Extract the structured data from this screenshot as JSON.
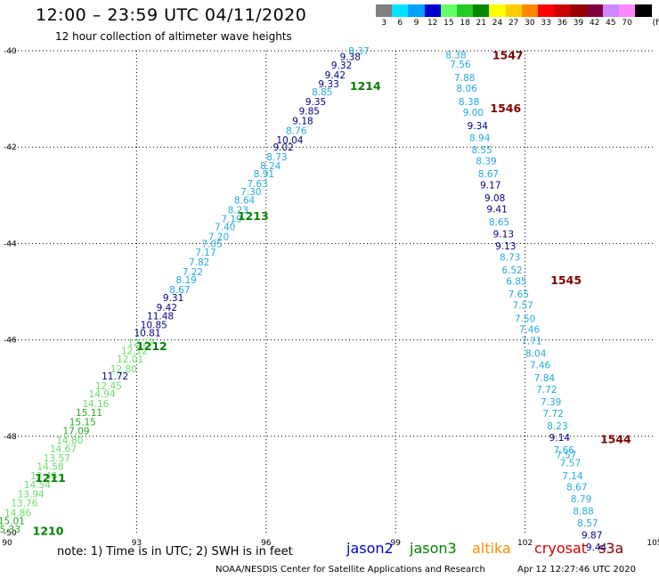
{
  "header": {
    "title": "12:00 – 23:59 UTC 04/11/2020",
    "subtitle": "12 hour collection of altimeter wave heights"
  },
  "legend": {
    "unit": "(ft)",
    "items": [
      {
        "label": "3",
        "color": "#808080"
      },
      {
        "label": "6",
        "color": "#00e5ff"
      },
      {
        "label": "9",
        "color": "#00a0ff"
      },
      {
        "label": "12",
        "color": "#0000cd"
      },
      {
        "label": "15",
        "color": "#66ff66"
      },
      {
        "label": "18",
        "color": "#22cc22"
      },
      {
        "label": "21",
        "color": "#008800"
      },
      {
        "label": "24",
        "color": "#ffff00"
      },
      {
        "label": "27",
        "color": "#ffcc00"
      },
      {
        "label": "30",
        "color": "#ff8800"
      },
      {
        "label": "33",
        "color": "#ff0000"
      },
      {
        "label": "36",
        "color": "#cc0000"
      },
      {
        "label": "39",
        "color": "#990000"
      },
      {
        "label": "42",
        "color": "#800040"
      },
      {
        "label": "45",
        "color": "#cc88ff"
      },
      {
        "label": "70",
        "color": "#ff88ff"
      },
      {
        "label": "",
        "color": "#000000"
      }
    ]
  },
  "axes": {
    "x_ticks": [
      "90",
      "93",
      "96",
      "99",
      "102",
      "105"
    ],
    "y_ticks": [
      "-40",
      "-42",
      "-44",
      "-46",
      "-48",
      "-50"
    ]
  },
  "colors": {
    "jason2": "#00008b",
    "jason3": "#008000",
    "altika": "#ff8c00",
    "cryosat": "#dd0000",
    "s3a": "#800000",
    "light_blue": "#22aadd",
    "dark_blue": "#00008b",
    "light_green": "#66dd66",
    "mid_green": "#22aa22",
    "grid": "#000000"
  },
  "map": {
    "points": [
      {
        "lon": 98.15,
        "lat": -40.0,
        "value": "8.37",
        "color": "#22aadd"
      },
      {
        "lon": 97.95,
        "lat": -40.12,
        "value": "9.38",
        "color": "#00008b"
      },
      {
        "lon": 97.75,
        "lat": -40.3,
        "value": "9.32",
        "color": "#00008b"
      },
      {
        "lon": 97.6,
        "lat": -40.5,
        "value": "9.42",
        "color": "#00008b"
      },
      {
        "lon": 97.45,
        "lat": -40.68,
        "value": "9.33",
        "color": "#00008b"
      },
      {
        "lon": 97.3,
        "lat": -40.85,
        "value": "8.85",
        "color": "#22aadd"
      },
      {
        "lon": 97.15,
        "lat": -41.05,
        "value": "9.35",
        "color": "#00008b"
      },
      {
        "lon": 97.0,
        "lat": -41.25,
        "value": "9.85",
        "color": "#00008b"
      },
      {
        "lon": 96.85,
        "lat": -41.45,
        "value": "9.18",
        "color": "#00008b"
      },
      {
        "lon": 96.7,
        "lat": -41.65,
        "value": "8.76",
        "color": "#22aadd"
      },
      {
        "lon": 96.55,
        "lat": -41.85,
        "value": "10.04",
        "color": "#00008b"
      },
      {
        "lon": 96.4,
        "lat": -42.0,
        "value": "9.02",
        "color": "#00008b"
      },
      {
        "lon": 96.25,
        "lat": -42.2,
        "value": "8.73",
        "color": "#22aadd"
      },
      {
        "lon": 96.1,
        "lat": -42.38,
        "value": "8.24",
        "color": "#22aadd"
      },
      {
        "lon": 95.95,
        "lat": -42.55,
        "value": "8.91",
        "color": "#22aadd"
      },
      {
        "lon": 95.8,
        "lat": -42.75,
        "value": "7.63",
        "color": "#22aadd"
      },
      {
        "lon": 95.65,
        "lat": -42.92,
        "value": "7.30",
        "color": "#22aadd"
      },
      {
        "lon": 95.5,
        "lat": -43.1,
        "value": "8.64",
        "color": "#22aadd"
      },
      {
        "lon": 95.35,
        "lat": -43.3,
        "value": "8.23",
        "color": "#22aadd"
      },
      {
        "lon": 95.2,
        "lat": -43.48,
        "value": "7.19",
        "color": "#22aadd"
      },
      {
        "lon": 95.05,
        "lat": -43.65,
        "value": "7.40",
        "color": "#22aadd"
      },
      {
        "lon": 94.9,
        "lat": -43.85,
        "value": "7.20",
        "color": "#22aadd"
      },
      {
        "lon": 94.75,
        "lat": -44.0,
        "value": "7.05",
        "color": "#22aadd"
      },
      {
        "lon": 94.6,
        "lat": -44.18,
        "value": "7.17",
        "color": "#22aadd"
      },
      {
        "lon": 94.45,
        "lat": -44.38,
        "value": "7.82",
        "color": "#22aadd"
      },
      {
        "lon": 94.3,
        "lat": -44.58,
        "value": "7.22",
        "color": "#22aadd"
      },
      {
        "lon": 94.15,
        "lat": -44.75,
        "value": "8.19",
        "color": "#22aadd"
      },
      {
        "lon": 94.0,
        "lat": -44.95,
        "value": "8.67",
        "color": "#22aadd"
      },
      {
        "lon": 93.85,
        "lat": -45.12,
        "value": "9.31",
        "color": "#00008b"
      },
      {
        "lon": 93.7,
        "lat": -45.32,
        "value": "9.42",
        "color": "#00008b"
      },
      {
        "lon": 93.55,
        "lat": -45.5,
        "value": "11.48",
        "color": "#00008b"
      },
      {
        "lon": 93.4,
        "lat": -45.68,
        "value": "10.85",
        "color": "#00008b"
      },
      {
        "lon": 93.25,
        "lat": -45.85,
        "value": "10.81",
        "color": "#00008b"
      },
      {
        "lon": 93.1,
        "lat": -46.05,
        "value": "12.27",
        "color": "#66dd66"
      },
      {
        "lon": 92.95,
        "lat": -46.22,
        "value": "12.12",
        "color": "#66dd66"
      },
      {
        "lon": 92.85,
        "lat": -46.4,
        "value": "12.01",
        "color": "#66dd66"
      },
      {
        "lon": 92.7,
        "lat": -46.6,
        "value": "12.80",
        "color": "#66dd66"
      },
      {
        "lon": 92.5,
        "lat": -46.75,
        "value": "11.72",
        "color": "#00008b"
      },
      {
        "lon": 92.35,
        "lat": -46.95,
        "value": "12.45",
        "color": "#66dd66"
      },
      {
        "lon": 92.2,
        "lat": -47.12,
        "value": "14.94",
        "color": "#66dd66"
      },
      {
        "lon": 92.05,
        "lat": -47.32,
        "value": "14.16",
        "color": "#66dd66"
      },
      {
        "lon": 91.9,
        "lat": -47.5,
        "value": "15.11",
        "color": "#22aa22"
      },
      {
        "lon": 91.75,
        "lat": -47.7,
        "value": "15.15",
        "color": "#22aa22"
      },
      {
        "lon": 91.6,
        "lat": -47.88,
        "value": "17.09",
        "color": "#22aa22"
      },
      {
        "lon": 91.45,
        "lat": -48.08,
        "value": "14.80",
        "color": "#66dd66"
      },
      {
        "lon": 91.3,
        "lat": -48.25,
        "value": "14.67",
        "color": "#66dd66"
      },
      {
        "lon": 91.15,
        "lat": -48.45,
        "value": "13.57",
        "color": "#66dd66"
      },
      {
        "lon": 91.0,
        "lat": -48.62,
        "value": "14.58",
        "color": "#66dd66"
      },
      {
        "lon": 90.85,
        "lat": -48.82,
        "value": "13.48",
        "color": "#66dd66"
      },
      {
        "lon": 90.7,
        "lat": -49.0,
        "value": "14.54",
        "color": "#66dd66"
      },
      {
        "lon": 90.55,
        "lat": -49.2,
        "value": "13.94",
        "color": "#66dd66"
      },
      {
        "lon": 90.4,
        "lat": -49.38,
        "value": "13.76",
        "color": "#66dd66"
      },
      {
        "lon": 90.25,
        "lat": -49.58,
        "value": "14.86",
        "color": "#66dd66"
      },
      {
        "lon": 90.1,
        "lat": -49.75,
        "value": "15.01",
        "color": "#22aa22"
      },
      {
        "lon": 90.0,
        "lat": -49.93,
        "value": "15.33",
        "color": "#22aa22"
      },
      {
        "lon": 100.4,
        "lat": -40.08,
        "value": "8.38",
        "color": "#22aadd"
      },
      {
        "lon": 100.5,
        "lat": -40.28,
        "value": "7.56",
        "color": "#22aadd"
      },
      {
        "lon": 100.6,
        "lat": -40.55,
        "value": "7.88",
        "color": "#22aadd"
      },
      {
        "lon": 100.65,
        "lat": -40.78,
        "value": "8.06",
        "color": "#22aadd"
      },
      {
        "lon": 100.7,
        "lat": -41.05,
        "value": "8.38",
        "color": "#22aadd"
      },
      {
        "lon": 100.8,
        "lat": -41.28,
        "value": "9.00",
        "color": "#22aadd"
      },
      {
        "lon": 100.9,
        "lat": -41.55,
        "value": "9.34",
        "color": "#00008b"
      },
      {
        "lon": 100.95,
        "lat": -41.8,
        "value": "8.94",
        "color": "#22aadd"
      },
      {
        "lon": 101.0,
        "lat": -42.05,
        "value": "8.55",
        "color": "#22aadd"
      },
      {
        "lon": 101.1,
        "lat": -42.28,
        "value": "8.39",
        "color": "#22aadd"
      },
      {
        "lon": 101.15,
        "lat": -42.55,
        "value": "8.67",
        "color": "#22aadd"
      },
      {
        "lon": 101.2,
        "lat": -42.78,
        "value": "9.17",
        "color": "#00008b"
      },
      {
        "lon": 101.3,
        "lat": -43.05,
        "value": "9.08",
        "color": "#00008b"
      },
      {
        "lon": 101.35,
        "lat": -43.28,
        "value": "9.41",
        "color": "#00008b"
      },
      {
        "lon": 101.4,
        "lat": -43.55,
        "value": "8.65",
        "color": "#22aadd"
      },
      {
        "lon": 101.5,
        "lat": -43.8,
        "value": "9.13",
        "color": "#00008b"
      },
      {
        "lon": 101.55,
        "lat": -44.05,
        "value": "9.13",
        "color": "#00008b"
      },
      {
        "lon": 101.65,
        "lat": -44.28,
        "value": "8.73",
        "color": "#22aadd"
      },
      {
        "lon": 101.7,
        "lat": -44.55,
        "value": "6.52",
        "color": "#22aadd"
      },
      {
        "lon": 101.8,
        "lat": -44.78,
        "value": "6.85",
        "color": "#22aadd"
      },
      {
        "lon": 101.85,
        "lat": -45.05,
        "value": "7.65",
        "color": "#22aadd"
      },
      {
        "lon": 101.95,
        "lat": -45.28,
        "value": "7.57",
        "color": "#22aadd"
      },
      {
        "lon": 102.0,
        "lat": -45.55,
        "value": "7.50",
        "color": "#22aadd"
      },
      {
        "lon": 102.1,
        "lat": -45.78,
        "value": "7.46",
        "color": "#22aadd"
      },
      {
        "lon": 102.15,
        "lat": -46.02,
        "value": "7.71",
        "color": "#22aadd"
      },
      {
        "lon": 102.25,
        "lat": -46.28,
        "value": "8.04",
        "color": "#22aadd"
      },
      {
        "lon": 102.35,
        "lat": -46.52,
        "value": "7.46",
        "color": "#22aadd"
      },
      {
        "lon": 102.45,
        "lat": -46.78,
        "value": "7.84",
        "color": "#22aadd"
      },
      {
        "lon": 102.5,
        "lat": -47.02,
        "value": "7.72",
        "color": "#22aadd"
      },
      {
        "lon": 102.6,
        "lat": -47.28,
        "value": "7.39",
        "color": "#22aadd"
      },
      {
        "lon": 102.65,
        "lat": -47.52,
        "value": "7.72",
        "color": "#22aadd"
      },
      {
        "lon": 102.75,
        "lat": -47.78,
        "value": "8.23",
        "color": "#22aadd"
      },
      {
        "lon": 102.8,
        "lat": -48.02,
        "value": "9.14",
        "color": "#00008b"
      },
      {
        "lon": 102.9,
        "lat": -48.28,
        "value": "7.66",
        "color": "#22aadd"
      },
      {
        "lon": 102.95,
        "lat": -48.38,
        "value": "7.57",
        "color": "#22aadd"
      },
      {
        "lon": 103.05,
        "lat": -48.55,
        "value": "7.57",
        "color": "#22aadd"
      },
      {
        "lon": 103.1,
        "lat": -48.82,
        "value": "7.14",
        "color": "#22aadd"
      },
      {
        "lon": 103.2,
        "lat": -49.05,
        "value": "8.67",
        "color": "#22aadd"
      },
      {
        "lon": 103.3,
        "lat": -49.3,
        "value": "8.79",
        "color": "#22aadd"
      },
      {
        "lon": 103.35,
        "lat": -49.55,
        "value": "8.88",
        "color": "#22aadd"
      },
      {
        "lon": 103.45,
        "lat": -49.8,
        "value": "8.57",
        "color": "#22aadd"
      },
      {
        "lon": 103.55,
        "lat": -50.05,
        "value": "9.87",
        "color": "#00008b"
      },
      {
        "lon": 103.65,
        "lat": -50.3,
        "value": "9.44",
        "color": "#00008b"
      }
    ],
    "time_labels": [
      {
        "lon": 98.3,
        "lat": -40.72,
        "value": "1214",
        "color": "#008000"
      },
      {
        "lon": 95.7,
        "lat": -43.42,
        "value": "1213",
        "color": "#008000"
      },
      {
        "lon": 93.35,
        "lat": -46.12,
        "value": "1212",
        "color": "#008000"
      },
      {
        "lon": 91.0,
        "lat": -48.85,
        "value": "1211",
        "color": "#008000"
      },
      {
        "lon": 90.95,
        "lat": -49.95,
        "value": "1210",
        "color": "#008000"
      },
      {
        "lon": 101.6,
        "lat": -40.08,
        "value": "1547",
        "color": "#800000"
      },
      {
        "lon": 101.55,
        "lat": -41.18,
        "value": "1546",
        "color": "#800000"
      },
      {
        "lon": 102.95,
        "lat": -44.75,
        "value": "1545",
        "color": "#800000"
      },
      {
        "lon": 104.1,
        "lat": -48.05,
        "value": "1544",
        "color": "#800000"
      }
    ]
  },
  "footer": {
    "note": "note:  1) Time is in UTC;  2) SWH is in feet",
    "satellites": [
      {
        "name": "jason2",
        "color": "#0000cd"
      },
      {
        "name": "jason3",
        "color": "#008000"
      },
      {
        "name": "altika",
        "color": "#ff8c00"
      },
      {
        "name": "cryosat",
        "color": "#dd0000"
      },
      {
        "name": "s3a",
        "color": "#800000"
      }
    ],
    "credit": "NOAA/NESDIS Center for Satellite Applications and Research",
    "timestamp": "Apr 12 12:27:46 UTC 2020"
  }
}
